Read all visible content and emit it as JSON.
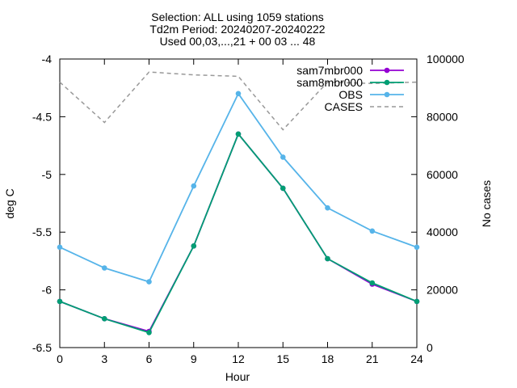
{
  "chart_data": {
    "type": "line",
    "title_lines": [
      "Selection: ALL using  1059 stations",
      "Td2m   Period: 20240207-20240222",
      "Used 00,03,...,21 + 00 03 ... 48"
    ],
    "xlabel": "Hour",
    "ylabel": "deg C",
    "y2label": "No cases",
    "x": [
      0,
      3,
      6,
      9,
      12,
      15,
      18,
      21,
      24
    ],
    "xlim": [
      0,
      24
    ],
    "ylim": [
      -6.5,
      -4
    ],
    "y2lim": [
      0,
      100000
    ],
    "xticks": [
      "0",
      "3",
      "6",
      "9",
      "12",
      "15",
      "18",
      "21",
      "24"
    ],
    "yticks": [
      "-4",
      "-4.5",
      "-5",
      "-5.5",
      "-6",
      "-6.5"
    ],
    "y2ticks": [
      "100000",
      "80000",
      "60000",
      "40000",
      "20000",
      "0"
    ],
    "grid": false,
    "legend_position": "top-right",
    "series": [
      {
        "name": "sam7mbr000",
        "axis": "y1",
        "color": "#9400d3",
        "style": "solid-points",
        "values": [
          -6.1,
          -6.25,
          -6.36,
          -5.62,
          -4.65,
          -5.12,
          -5.73,
          -5.95,
          -6.1
        ]
      },
      {
        "name": "sam8mbr000",
        "axis": "y1",
        "color": "#009e73",
        "style": "solid-points",
        "values": [
          -6.1,
          -6.25,
          -6.37,
          -5.62,
          -4.65,
          -5.12,
          -5.73,
          -5.94,
          -6.1
        ]
      },
      {
        "name": "OBS",
        "axis": "y1",
        "color": "#56b4e9",
        "style": "solid-points",
        "values": [
          -5.63,
          -5.81,
          -5.93,
          -5.1,
          -4.3,
          -4.85,
          -5.29,
          -5.49,
          -5.63
        ]
      },
      {
        "name": "CASES",
        "axis": "y2",
        "color": "#999999",
        "style": "dashed",
        "values": [
          92000,
          78000,
          95500,
          94500,
          94000,
          75500,
          92000,
          91500,
          92000
        ]
      }
    ]
  }
}
